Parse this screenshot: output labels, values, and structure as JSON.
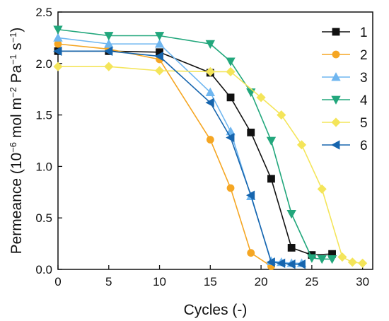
{
  "chart_data": {
    "type": "line",
    "title": "",
    "xlabel": "Cycles (-)",
    "ylabel": {
      "prefix": "Permeance (10",
      "exp1": "−6",
      "mid1": " mol m",
      "exp2": "−2",
      "mid2": " Pa",
      "exp3": "−1",
      "mid3": " s",
      "exp4": "−1",
      "suffix": ")"
    },
    "xlim": [
      0,
      31
    ],
    "ylim": [
      0,
      2.5
    ],
    "xticks": [
      0,
      5,
      10,
      15,
      20,
      25,
      30
    ],
    "yticks": [
      0.0,
      0.5,
      1.0,
      1.5,
      2.0,
      2.5
    ],
    "xtick_labels": [
      "0",
      "5",
      "10",
      "15",
      "20",
      "25",
      "30"
    ],
    "ytick_labels": [
      "0.0",
      "0.5",
      "1.0",
      "1.5",
      "2.0",
      "2.5"
    ],
    "grid": false,
    "legend_position": "top-right",
    "series": [
      {
        "name": "1",
        "color": "#111111",
        "marker": "square",
        "x": [
          0,
          5,
          10,
          15,
          17,
          19,
          21,
          23,
          25,
          27
        ],
        "y": [
          2.12,
          2.12,
          2.11,
          1.91,
          1.67,
          1.33,
          0.88,
          0.21,
          0.14,
          0.15
        ]
      },
      {
        "name": "2",
        "color": "#F5A623",
        "marker": "circle",
        "x": [
          0,
          5,
          10,
          15,
          17,
          19,
          21
        ],
        "y": [
          2.19,
          2.14,
          2.04,
          1.26,
          0.79,
          0.16,
          0.03
        ]
      },
      {
        "name": "3",
        "color": "#6FB6F0",
        "marker": "triangle-up",
        "x": [
          0,
          5,
          10,
          15,
          17,
          19,
          21,
          22,
          23,
          24
        ],
        "y": [
          2.25,
          2.19,
          2.19,
          1.72,
          1.34,
          0.71,
          0.08,
          0.07,
          0.06,
          0.06
        ]
      },
      {
        "name": "4",
        "color": "#22A77C",
        "marker": "triangle-down",
        "x": [
          0,
          5,
          10,
          15,
          17,
          19,
          21,
          23,
          25,
          26,
          27
        ],
        "y": [
          2.33,
          2.27,
          2.27,
          2.19,
          2.02,
          1.72,
          1.25,
          0.54,
          0.11,
          0.1,
          0.1
        ]
      },
      {
        "name": "5",
        "color": "#F4E55A",
        "marker": "diamond",
        "x": [
          0,
          5,
          10,
          15,
          17,
          20,
          22,
          24,
          26,
          28,
          29,
          30
        ],
        "y": [
          1.97,
          1.97,
          1.93,
          1.92,
          1.92,
          1.67,
          1.5,
          1.21,
          0.78,
          0.12,
          0.07,
          0.06
        ]
      },
      {
        "name": "6",
        "color": "#1665AE",
        "marker": "triangle-left",
        "x": [
          0,
          5,
          10,
          15,
          17,
          19,
          21,
          22,
          23,
          24
        ],
        "y": [
          2.12,
          2.12,
          2.07,
          1.62,
          1.28,
          0.72,
          0.07,
          0.06,
          0.05,
          0.05
        ]
      }
    ]
  }
}
